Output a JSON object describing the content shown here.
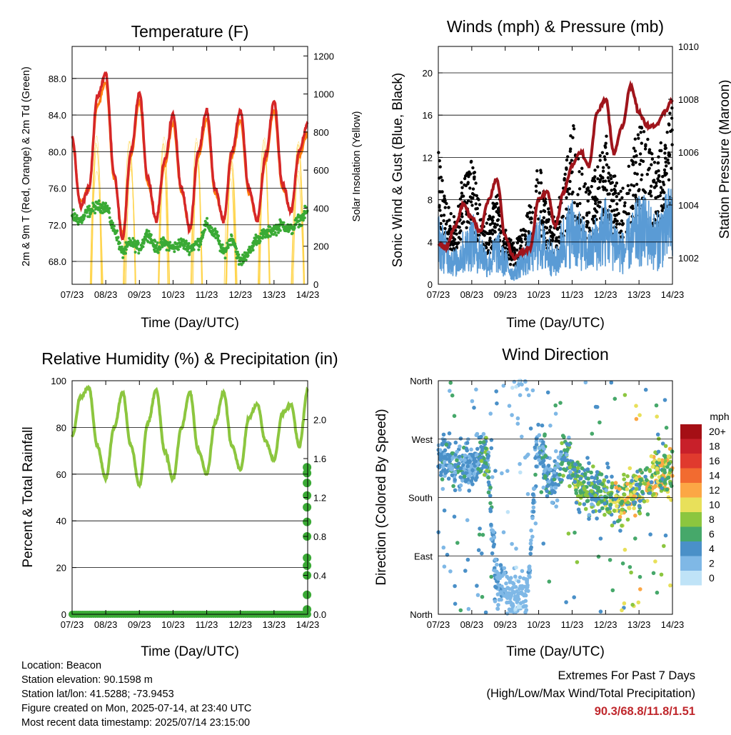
{
  "x_ticks": [
    "07/23",
    "08/23",
    "09/23",
    "10/23",
    "11/23",
    "12/23",
    "13/23",
    "14/23"
  ],
  "colors": {
    "temp_2m": "#d62728",
    "temp_9m": "#ff7f0e",
    "dewpoint": "#3aaa35",
    "solar": "#ffd54f",
    "gust": "#000000",
    "wind": "#5a9bd5",
    "pressure": "#a0151c",
    "rh": "#8cc63f",
    "precip": "#3aaa35",
    "extremes": "#c0282d"
  },
  "panels": {
    "temperature": {
      "title": "Temperature (F)",
      "xlabel": "Time (Day/UTC)",
      "ylabel_left": "2m & 9m T (Red, Orange) & 2m Td (Green)",
      "ylabel_right": "Solar Insolation (Yellow)",
      "yticks_left": [
        "88.0",
        "84.0",
        "80.0",
        "76.0",
        "72.0",
        "68.0"
      ],
      "yticks_right": [
        "1200",
        "1000",
        "800",
        "600",
        "400",
        "200",
        "0"
      ]
    },
    "winds": {
      "title": "Winds (mph) & Pressure (mb)",
      "xlabel": "Time (Day/UTC)",
      "ylabel_left": "Sonic Wind & Gust (Blue, Black)",
      "ylabel_right": "Station Pressure (Maroon)",
      "yticks_left": [
        "20",
        "16",
        "12",
        "8",
        "4",
        "0"
      ],
      "yticks_right": [
        "1010",
        "1008",
        "1006",
        "1004",
        "1002"
      ]
    },
    "humidity": {
      "title": "Relative Humidity (%) & Precipitation (in)",
      "xlabel": "Time (Day/UTC)",
      "ylabel_left": "Percent & Total Rainfall",
      "yticks_left": [
        "100",
        "80",
        "60",
        "40",
        "20",
        "0"
      ],
      "yticks_right": [
        "2.0",
        "1.6",
        "1.2",
        "0.8",
        "0.4",
        "0.0"
      ]
    },
    "direction": {
      "title": "Wind Direction",
      "xlabel": "Time (Day/UTC)",
      "ylabel_left": "Direction (Colored By Speed)",
      "yticks_left": [
        "North",
        "West",
        "South",
        "East",
        "North"
      ],
      "legend_title": "mph",
      "legend_labels": [
        "20+",
        "18",
        "16",
        "14",
        "12",
        "10",
        "8",
        "6",
        "4",
        "2",
        "0"
      ],
      "legend_colors": [
        "#a50f15",
        "#c8202a",
        "#e03a2e",
        "#f26b30",
        "#fca745",
        "#e8e05a",
        "#8cc63f",
        "#46a86a",
        "#4a90c8",
        "#7fb8e6",
        "#bfe3f7"
      ]
    }
  },
  "info": {
    "location": "Location: Beacon",
    "elevation": "Station elevation: 90.1598 m",
    "latlon": "Station lat/lon: 41.5288; -73.9453",
    "created": "Figure created on Mon, 2025-07-14, at 23:40 UTC",
    "recent": "Most recent data timestamp: 2025/07/14 23:15:00"
  },
  "extremes": {
    "line1": "Extremes For Past 7 Days",
    "line2": "(High/Low/Max Wind/Total Precipitation)",
    "values": "90.3/68.8/11.8/1.51"
  },
  "chart_data": [
    {
      "type": "line",
      "title": "Temperature (F)",
      "xlabel": "Time (Day/UTC)",
      "ylabel": "2m & 9m T (Red, Orange) & 2m Td (Green)",
      "y2label": "Solar Insolation (Yellow)",
      "ylim": [
        65.5,
        91.5
      ],
      "y2lim": [
        0,
        1250
      ],
      "x": [
        7.0,
        7.25,
        7.5,
        7.75,
        8.0,
        8.25,
        8.5,
        8.75,
        9.0,
        9.25,
        9.5,
        9.75,
        10.0,
        10.25,
        10.5,
        10.75,
        11.0,
        11.25,
        11.5,
        11.75,
        12.0,
        12.25,
        12.5,
        12.75,
        13.0,
        13.25,
        13.5,
        13.75,
        14.0
      ],
      "x_unit": "day of month (UTC)",
      "series": [
        {
          "name": "2m T",
          "values": [
            81.5,
            74.0,
            76.0,
            86.0,
            88.5,
            77.5,
            70.5,
            80.0,
            86.5,
            77.0,
            72.5,
            79.0,
            84.0,
            76.0,
            71.5,
            80.0,
            84.5,
            76.0,
            72.5,
            80.0,
            84.5,
            76.0,
            72.5,
            79.5,
            85.5,
            76.5,
            73.5,
            80.0,
            83.0
          ]
        },
        {
          "name": "9m T",
          "values": [
            81.0,
            74.5,
            76.0,
            85.0,
            87.5,
            77.0,
            71.0,
            79.5,
            85.5,
            76.5,
            72.5,
            78.5,
            83.0,
            75.5,
            71.5,
            79.5,
            83.5,
            75.5,
            72.5,
            79.5,
            83.5,
            75.5,
            72.5,
            79.0,
            84.5,
            76.0,
            73.5,
            79.5,
            82.0
          ]
        },
        {
          "name": "2m Td",
          "values": [
            73.0,
            72.5,
            73.5,
            74.0,
            74.0,
            71.5,
            69.0,
            70.0,
            69.5,
            71.0,
            69.5,
            70.0,
            69.5,
            70.0,
            69.5,
            70.0,
            72.0,
            71.0,
            69.0,
            70.5,
            68.0,
            69.0,
            70.5,
            71.0,
            71.5,
            72.0,
            71.5,
            72.5,
            73.5
          ]
        },
        {
          "name": "Solar Insolation",
          "axis": "right",
          "values": [
            0,
            0,
            650,
            1000,
            50,
            0,
            600,
            1050,
            200,
            0,
            0,
            1000,
            300,
            0,
            0,
            1000,
            300,
            0,
            0,
            1000,
            300,
            0,
            0,
            1000,
            400,
            0,
            0,
            1000,
            0
          ]
        }
      ]
    },
    {
      "type": "line",
      "title": "Winds (mph) & Pressure (mb)",
      "xlabel": "Time (Day/UTC)",
      "ylabel": "Sonic Wind & Gust (Blue, Black)",
      "y2label": "Station Pressure (Maroon)",
      "ylim": [
        0,
        22.5
      ],
      "y2lim": [
        1001.0,
        1010.0
      ],
      "x": [
        7.0,
        7.25,
        7.5,
        7.75,
        8.0,
        8.25,
        8.5,
        8.75,
        9.0,
        9.25,
        9.5,
        9.75,
        10.0,
        10.25,
        10.5,
        10.75,
        11.0,
        11.25,
        11.5,
        11.75,
        12.0,
        12.25,
        12.5,
        12.75,
        13.0,
        13.25,
        13.5,
        13.75,
        14.0
      ],
      "x_unit": "day of month (UTC)",
      "series": [
        {
          "name": "Sonic Wind",
          "values": [
            4,
            3,
            2,
            3,
            4,
            3,
            2,
            3,
            2,
            1,
            2,
            3,
            4,
            3,
            2,
            4,
            5,
            4,
            3,
            4,
            5,
            4,
            3,
            4,
            5,
            5,
            4,
            5,
            6
          ]
        },
        {
          "name": "Gust",
          "values": [
            10,
            6,
            5,
            8,
            9,
            6,
            5,
            7,
            4,
            3,
            4,
            6,
            9,
            6,
            5,
            8,
            12,
            9,
            7,
            9,
            11,
            8,
            7,
            9,
            12,
            11,
            9,
            11,
            13
          ]
        },
        {
          "name": "Station Pressure",
          "axis": "right",
          "values": [
            1002.5,
            1002.4,
            1003.2,
            1004.0,
            1003.5,
            1003.0,
            1004.2,
            1005.0,
            1002.8,
            1002.0,
            1002.2,
            1002.4,
            1004.2,
            1004.5,
            1003.2,
            1004.5,
            1005.5,
            1006.0,
            1005.5,
            1007.5,
            1008.0,
            1006.0,
            1007.0,
            1008.5,
            1007.5,
            1007.0,
            1007.0,
            1007.5,
            1008.0
          ]
        }
      ]
    },
    {
      "type": "line",
      "title": "Relative Humidity (%) & Precipitation (in)",
      "xlabel": "Time (Day/UTC)",
      "ylabel": "Percent & Total Rainfall",
      "ylim": [
        0,
        100
      ],
      "y2lim": [
        0,
        2.4
      ],
      "x": [
        7.0,
        7.25,
        7.5,
        7.75,
        8.0,
        8.25,
        8.5,
        8.75,
        9.0,
        9.25,
        9.5,
        9.75,
        10.0,
        10.25,
        10.5,
        10.75,
        11.0,
        11.25,
        11.5,
        11.75,
        12.0,
        12.25,
        12.5,
        12.75,
        13.0,
        13.25,
        13.5,
        13.75,
        14.0
      ],
      "x_unit": "day of month (UTC)",
      "series": [
        {
          "name": "Relative Humidity",
          "values": [
            76,
            93,
            97,
            72,
            58,
            80,
            95,
            72,
            55,
            82,
            96,
            70,
            58,
            80,
            95,
            70,
            60,
            82,
            95,
            72,
            62,
            84,
            90,
            74,
            66,
            86,
            90,
            72,
            96
          ]
        },
        {
          "name": "Total Precipitation",
          "axis": "right",
          "values": [
            0,
            0,
            0,
            0,
            0,
            0,
            0,
            0,
            0,
            0,
            0,
            0,
            0,
            0,
            0,
            0,
            0,
            0,
            0,
            0,
            0,
            0,
            0,
            0,
            0,
            0,
            0,
            0,
            1.51
          ]
        }
      ]
    },
    {
      "type": "scatter",
      "title": "Wind Direction",
      "xlabel": "Time (Day/UTC)",
      "ylabel": "Direction (Colored By Speed)",
      "ylim": [
        0,
        360
      ],
      "y_categories": [
        "North",
        "East",
        "South",
        "West",
        "North"
      ],
      "x": [
        7.2,
        7.6,
        8.0,
        8.4,
        8.8,
        9.2,
        9.6,
        10.0,
        10.4,
        10.8,
        11.2,
        11.6,
        12.0,
        12.4,
        12.8,
        13.2,
        13.6,
        14.0
      ],
      "series": [
        {
          "name": "Direction (deg)",
          "values": [
            240,
            225,
            230,
            250,
            40,
            30,
            20,
            260,
            200,
            250,
            200,
            190,
            185,
            175,
            180,
            200,
            220,
            230
          ]
        },
        {
          "name": "Speed (mph)",
          "values": [
            4,
            5,
            3,
            6,
            3,
            2,
            2,
            5,
            4,
            6,
            8,
            6,
            7,
            10,
            9,
            9,
            10,
            11
          ]
        }
      ]
    }
  ]
}
